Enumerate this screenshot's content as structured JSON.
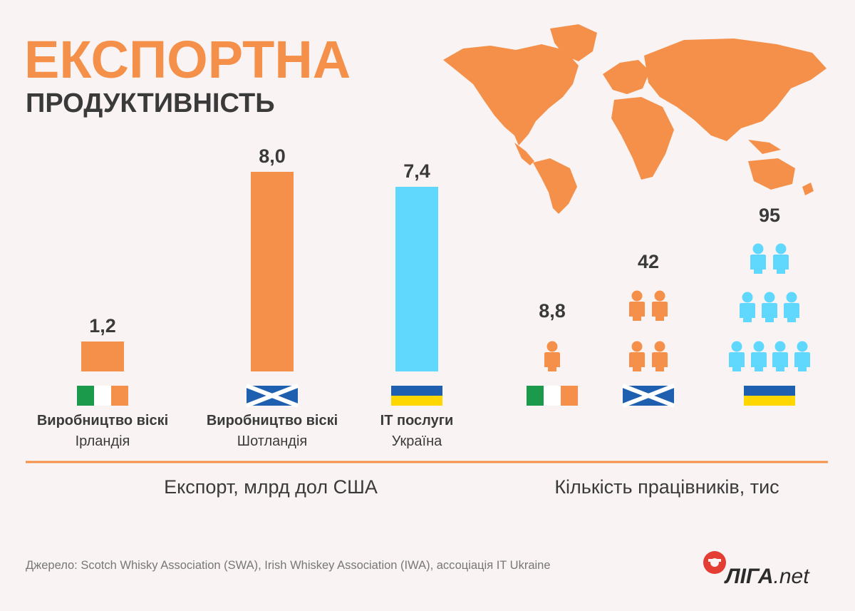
{
  "header": {
    "title": "ЕКСПОРТНА",
    "subtitle": "ПРОДУКТИВНІСТЬ"
  },
  "colors": {
    "orange": "#f5904a",
    "blue": "#60d8fd",
    "text_dark": "#3a3a3a",
    "text_gray": "#777777",
    "background": "#f9f4f3"
  },
  "chart_data": [
    {
      "type": "bar",
      "categories": [
        "Ірландія",
        "Шотландія",
        "Україна"
      ],
      "category_titles": [
        "Виробництво віскі",
        "Виробництво віскі",
        "IT послуги"
      ],
      "values": [
        1.2,
        8.0,
        7.4
      ],
      "value_labels": [
        "1,2",
        "8,0",
        "7,4"
      ],
      "bar_colors": [
        "orange",
        "orange",
        "blue"
      ],
      "flags": [
        "ireland-flag",
        "scotland-flag",
        "ukraine-flag"
      ],
      "ylim": [
        0,
        8.0
      ],
      "xlabel": "Експорт, млрд дол США",
      "grid": false
    },
    {
      "type": "pictogram",
      "categories": [
        "Ірландія",
        "Шотландія",
        "Україна"
      ],
      "values": [
        8.8,
        42,
        95
      ],
      "value_labels": [
        "8,8",
        "42",
        "95"
      ],
      "icon_counts": [
        1,
        4,
        9
      ],
      "icon_colors": [
        "orange",
        "orange",
        "blue"
      ],
      "flags": [
        "ireland-flag",
        "scotland-flag",
        "ukraine-flag"
      ],
      "xlabel": "Кількість працівників, тис"
    }
  ],
  "footer": {
    "source": "Джерело: Scotch Whisky Association (SWA), Irish Whiskey Association (IWA), ассоціація IT Ukraine",
    "logo_text": "ЛІГА",
    "logo_suffix": ".net",
    "logo_icon": "liga-logo-icon"
  },
  "decor": {
    "map": "world-map-icon"
  }
}
